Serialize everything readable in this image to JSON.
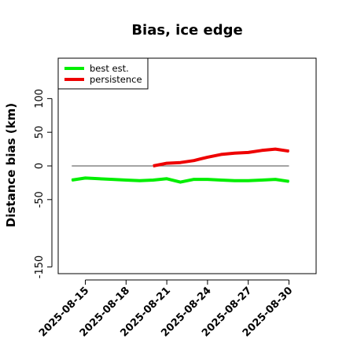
{
  "chart_data": {
    "type": "line",
    "title": "Bias, ice edge",
    "xlabel": "",
    "ylabel": "Distance bias (km)",
    "x_ticks": [
      "2025-08-15",
      "2025-08-18",
      "2025-08-21",
      "2025-08-24",
      "2025-08-27",
      "2025-08-30"
    ],
    "xlim": [
      "2025-08-13",
      "2025-09-01"
    ],
    "y_ticks": [
      -150,
      -50,
      0,
      50,
      100
    ],
    "y_tick_labels": [
      "-150",
      "-50",
      "0",
      "50",
      "100"
    ],
    "ylim": [
      -160,
      160
    ],
    "grid": false,
    "reference_line": {
      "y": 0,
      "from": "2025-08-14",
      "to": "2025-08-30",
      "color": "#6e6e6e"
    },
    "legend_position": "top-left",
    "series": [
      {
        "name": "best est.",
        "color": "#00ee00",
        "x": [
          "2025-08-14",
          "2025-08-15",
          "2025-08-16",
          "2025-08-17",
          "2025-08-18",
          "2025-08-19",
          "2025-08-20",
          "2025-08-21",
          "2025-08-22",
          "2025-08-23",
          "2025-08-24",
          "2025-08-25",
          "2025-08-26",
          "2025-08-27",
          "2025-08-28",
          "2025-08-29",
          "2025-08-30"
        ],
        "values": [
          -21,
          -18,
          -19,
          -20,
          -21,
          -22,
          -21,
          -19,
          -24,
          -20,
          -20,
          -21,
          -22,
          -22,
          -21,
          -20,
          -23
        ]
      },
      {
        "name": "persistence",
        "color": "#ee0000",
        "x": [
          "2025-08-20",
          "2025-08-21",
          "2025-08-22",
          "2025-08-23",
          "2025-08-24",
          "2025-08-25",
          "2025-08-26",
          "2025-08-27",
          "2025-08-28",
          "2025-08-29",
          "2025-08-30"
        ],
        "values": [
          0,
          4,
          5,
          8,
          13,
          17,
          19,
          20,
          23,
          25,
          22
        ]
      }
    ]
  }
}
